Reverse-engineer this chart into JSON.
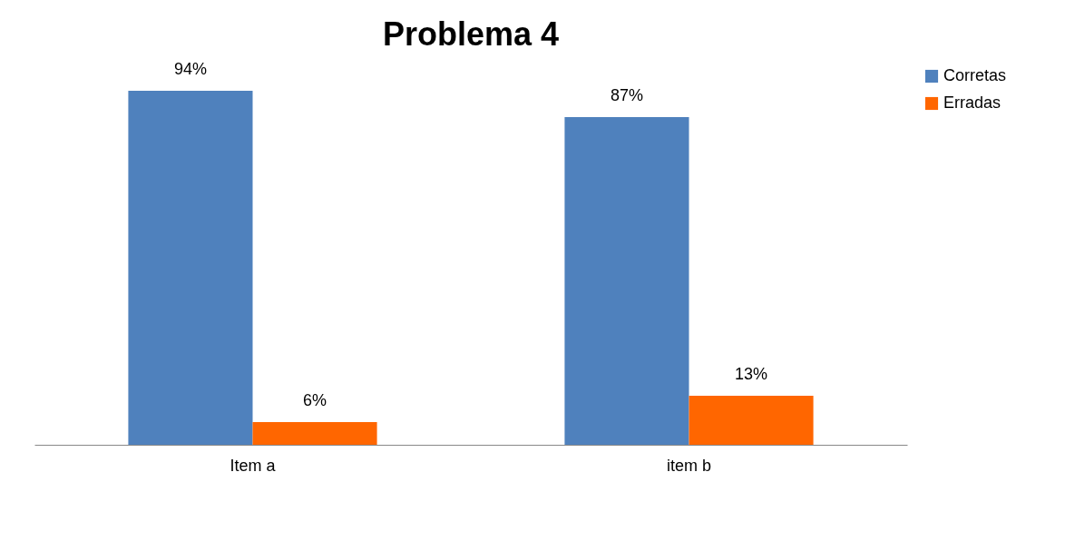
{
  "chart_data": {
    "type": "bar",
    "title": "Problema 4",
    "categories": [
      "Item a",
      "item b"
    ],
    "series": [
      {
        "name": "Corretas",
        "color": "#4f81bd",
        "values": [
          94,
          87
        ],
        "value_labels": [
          "94%",
          "87%"
        ]
      },
      {
        "name": "Erradas",
        "color": "#ff6600",
        "values": [
          6,
          13
        ],
        "value_labels": [
          "6%",
          "13%"
        ]
      }
    ],
    "legend": "right",
    "grid": false
  }
}
